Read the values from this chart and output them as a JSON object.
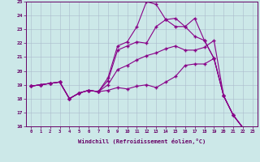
{
  "xlabel": "Windchill (Refroidissement éolien,°C)",
  "x": [
    0,
    1,
    2,
    3,
    4,
    5,
    6,
    7,
    8,
    9,
    10,
    11,
    12,
    13,
    14,
    15,
    16,
    17,
    18,
    19,
    20,
    21,
    22,
    23
  ],
  "y_line1": [
    18.9,
    19.0,
    19.1,
    19.2,
    18.0,
    18.4,
    18.6,
    18.5,
    19.5,
    21.8,
    22.1,
    23.2,
    25.0,
    24.8,
    23.7,
    23.8,
    23.2,
    22.5,
    22.2,
    20.9,
    18.2,
    16.8,
    15.9,
    15.8
  ],
  "y_line2": [
    18.9,
    19.0,
    19.1,
    19.2,
    18.0,
    18.4,
    18.6,
    18.5,
    19.3,
    21.5,
    21.8,
    22.1,
    22.0,
    23.2,
    23.7,
    23.2,
    23.2,
    23.8,
    22.2,
    20.9,
    18.2,
    16.8,
    15.9,
    15.8
  ],
  "y_line3": [
    18.9,
    19.0,
    19.1,
    19.2,
    18.0,
    18.4,
    18.6,
    18.5,
    19.0,
    20.1,
    20.4,
    20.8,
    21.1,
    21.3,
    21.6,
    21.8,
    21.5,
    21.5,
    21.7,
    22.2,
    18.2,
    16.8,
    15.9,
    15.8
  ],
  "y_line4": [
    18.9,
    19.0,
    19.1,
    19.2,
    18.0,
    18.4,
    18.6,
    18.5,
    18.6,
    18.8,
    18.7,
    18.9,
    19.0,
    18.8,
    19.2,
    19.6,
    20.4,
    20.5,
    20.5,
    20.9,
    18.2,
    16.8,
    15.9,
    15.8
  ],
  "line_color": "#880088",
  "bg_color": "#cce8e8",
  "grid_color": "#aabbcc",
  "ylim": [
    16,
    25
  ],
  "yticks": [
    16,
    17,
    18,
    19,
    20,
    21,
    22,
    23,
    24,
    25
  ]
}
